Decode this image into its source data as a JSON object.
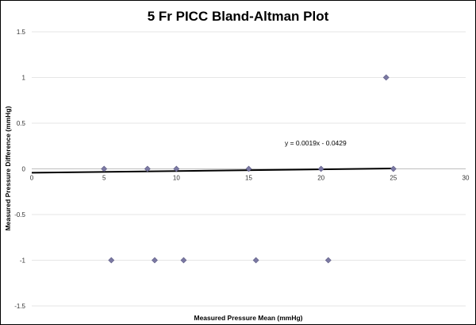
{
  "chart_data": {
    "type": "scatter",
    "title": "5 Fr PICC Bland-Altman Plot",
    "xlabel": "Measured Pressure Mean (mmHg)",
    "ylabel": "Measured Pressure Difference (mmHg)",
    "xlim": [
      0,
      30
    ],
    "ylim": [
      -1.5,
      1.5
    ],
    "xticks": [
      0,
      5,
      10,
      15,
      20,
      25,
      30
    ],
    "yticks": [
      1.5,
      1,
      0.5,
      0,
      -0.5,
      -1,
      -1.5
    ],
    "grid": true,
    "legend": "none",
    "marker_color": "#7b79a3",
    "trendline": {
      "slope": 0.0019,
      "intercept": -0.0429,
      "label": "y = 0.0019x - 0.0429",
      "color": "#000000"
    },
    "series": [
      {
        "points": [
          {
            "x": 5,
            "y": 0
          },
          {
            "x": 8,
            "y": 0
          },
          {
            "x": 10,
            "y": 0
          },
          {
            "x": 15,
            "y": 0
          },
          {
            "x": 20,
            "y": 0
          },
          {
            "x": 25,
            "y": 0
          },
          {
            "x": 24.5,
            "y": 1
          },
          {
            "x": 5.5,
            "y": -1
          },
          {
            "x": 8.5,
            "y": -1
          },
          {
            "x": 10.5,
            "y": -1
          },
          {
            "x": 15.5,
            "y": -1
          },
          {
            "x": 20.5,
            "y": -1
          }
        ]
      }
    ]
  }
}
